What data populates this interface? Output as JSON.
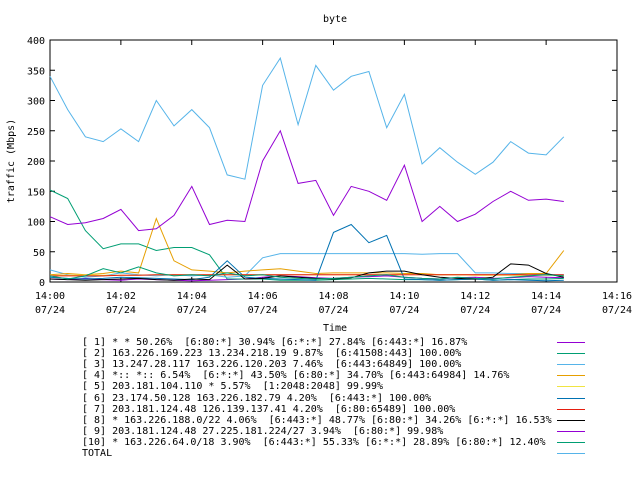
{
  "chart_data": {
    "type": "line",
    "title": "byte",
    "xlabel": "Time",
    "ylabel": "traffic (Mbps)",
    "ylim": [
      0,
      400
    ],
    "yticks": [
      "0",
      "50",
      "100",
      "150",
      "200",
      "250",
      "300",
      "350",
      "400"
    ],
    "xticks": [
      {
        "time": "14:00",
        "date": "07/24"
      },
      {
        "time": "14:02",
        "date": "07/24"
      },
      {
        "time": "14:04",
        "date": "07/24"
      },
      {
        "time": "14:06",
        "date": "07/24"
      },
      {
        "time": "14:08",
        "date": "07/24"
      },
      {
        "time": "14:10",
        "date": "07/24"
      },
      {
        "time": "14:12",
        "date": "07/24"
      },
      {
        "time": "14:14",
        "date": "07/24"
      },
      {
        "time": "14:16",
        "date": "07/24"
      }
    ],
    "grid": false,
    "legend_position": "bottom",
    "x": [
      "14:00",
      "14:00:30",
      "14:01",
      "14:01:30",
      "14:02",
      "14:02:30",
      "14:03",
      "14:03:30",
      "14:04",
      "14:04:30",
      "14:05",
      "14:05:30",
      "14:06",
      "14:06:30",
      "14:07",
      "14:07:30",
      "14:08",
      "14:08:30",
      "14:09",
      "14:09:30",
      "14:10",
      "14:10:30",
      "14:11",
      "14:11:30",
      "14:12",
      "14:12:30",
      "14:13",
      "14:13:30",
      "14:14",
      "14:14:30"
    ],
    "series": [
      {
        "name": "[ 1] * * 50.26%  [6:80:*] 30.94% [6:*:*] 27.84% [6:443:*] 16.87%",
        "color": "#9400d3",
        "values": [
          5,
          4,
          6,
          4,
          3,
          5,
          4,
          3,
          2,
          3,
          4,
          5,
          8,
          10,
          9,
          7,
          6,
          8,
          9,
          10,
          8,
          6,
          5,
          7,
          8,
          6,
          7,
          9,
          8,
          7
        ]
      },
      {
        "name": "[ 2] 163.226.169.223 13.234.218.19 9.87%  [6:41508:443] 100.00%",
        "color": "#009e73",
        "values": [
          152,
          138,
          85,
          55,
          63,
          63,
          52,
          57,
          57,
          45,
          5,
          5,
          5,
          3,
          3,
          3,
          4,
          5,
          6,
          5,
          4,
          4,
          3,
          4,
          5,
          3,
          4,
          5,
          5,
          6
        ]
      },
      {
        "name": "[ 3] 13.247.28.117 163.226.120.203 7.46%  [6:443:64849] 100.00%",
        "color": "#56b4e9",
        "values": [
          20,
          12,
          8,
          10,
          15,
          12,
          10,
          12,
          10,
          12,
          8,
          10,
          40,
          47,
          47,
          47,
          47,
          47,
          47,
          47,
          47,
          46,
          47,
          47,
          15,
          15,
          14,
          14,
          12,
          12
        ]
      },
      {
        "name": "[ 4] *:: *:: 6.54%  [6:*:*] 43.50% [6:80:*] 34.70% [6:443:64984] 14.76%",
        "color": "#e69f00",
        "values": [
          12,
          14,
          12,
          14,
          18,
          15,
          105,
          35,
          20,
          18,
          15,
          18,
          20,
          22,
          18,
          14,
          15,
          15,
          15,
          15,
          14,
          14,
          12,
          12,
          12,
          12,
          12,
          14,
          14,
          52
        ]
      },
      {
        "name": "[ 5] 203.181.104.110 * 5.57%  [1:2048:2048] 99.99%",
        "color": "#f0e442",
        "values": [
          10,
          11,
          11,
          11,
          11,
          11,
          12,
          12,
          12,
          12,
          12,
          12,
          12,
          12,
          12,
          12,
          12,
          12,
          12,
          12,
          12,
          12,
          12,
          12,
          11,
          11,
          11,
          11,
          11,
          11
        ]
      },
      {
        "name": "[ 6] 23.174.50.128 163.226.182.79 4.20%  [6:443:*] 100.00%",
        "color": "#0072b2",
        "values": [
          8,
          6,
          5,
          6,
          8,
          7,
          6,
          5,
          4,
          8,
          35,
          8,
          6,
          5,
          4,
          3,
          82,
          95,
          65,
          77,
          5,
          4,
          3,
          4,
          5,
          3,
          4,
          3,
          2,
          3
        ]
      },
      {
        "name": "[ 7] 203.181.124.48 126.139.137.41 4.20%  [6:80:65489] 100.00%",
        "color": "#e51e10",
        "values": [
          10,
          10,
          10,
          10,
          11,
          11,
          12,
          12,
          12,
          12,
          12,
          12,
          12,
          12,
          12,
          12,
          12,
          12,
          12,
          12,
          12,
          12,
          12,
          12,
          12,
          12,
          12,
          12,
          12,
          12
        ]
      },
      {
        "name": "[ 8] * 163.226.188.0/22 4.06%  [6:443:*] 48.77% [6:80:*] 34.26% [6:*:*] 16.53%",
        "color": "#000000",
        "values": [
          5,
          4,
          3,
          4,
          5,
          6,
          4,
          3,
          5,
          4,
          28,
          5,
          6,
          10,
          8,
          6,
          5,
          7,
          15,
          18,
          18,
          12,
          8,
          6,
          5,
          8,
          30,
          28,
          14,
          8
        ]
      },
      {
        "name": "[ 9] 203.181.124.48 27.225.181.224/27 3.94%  [6:80:*] 99.98%",
        "color": "#9400d3",
        "values": [
          108,
          95,
          98,
          105,
          120,
          85,
          88,
          110,
          158,
          95,
          102,
          100,
          200,
          250,
          163,
          168,
          110,
          158,
          150,
          135,
          193,
          100,
          125,
          100,
          112,
          133,
          150,
          135,
          137,
          133
        ]
      },
      {
        "name": "[10] * 163.226.64.0/18 3.90%  [6:443:*] 55.33% [6:*:*] 28.89% [6:80:*] 12.40%",
        "color": "#009e73",
        "values": [
          10,
          5,
          10,
          22,
          15,
          25,
          15,
          10,
          12,
          10,
          15,
          10,
          12,
          8,
          6,
          5,
          6,
          8,
          10,
          12,
          8,
          6,
          5,
          8,
          6,
          5,
          8,
          10,
          12,
          10
        ]
      },
      {
        "name": "TOTAL",
        "color": "#56b4e9",
        "values": [
          340,
          285,
          240,
          232,
          253,
          232,
          300,
          258,
          285,
          255,
          177,
          170,
          325,
          370,
          260,
          358,
          317,
          340,
          348,
          255,
          310,
          195,
          222,
          198,
          178,
          198,
          232,
          213,
          210,
          240
        ]
      }
    ]
  }
}
